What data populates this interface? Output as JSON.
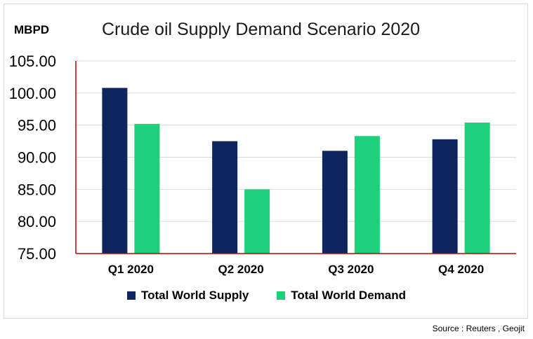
{
  "chart_data": {
    "type": "bar",
    "title": "Crude oil Supply Demand Scenario 2020",
    "ylabel": "MBPD",
    "xlabel": "",
    "categories": [
      "Q1 2020",
      "Q2 2020",
      "Q3 2020",
      "Q4 2020"
    ],
    "series": [
      {
        "name": "Total World Supply",
        "values": [
          100.8,
          92.5,
          91.0,
          92.8
        ],
        "color": "#0f2560"
      },
      {
        "name": "Total World Demand",
        "values": [
          95.2,
          85.0,
          93.3,
          95.4
        ],
        "color": "#1fd07a"
      }
    ],
    "ylim": [
      75,
      105
    ],
    "yticks": [
      "75.00",
      "80.00",
      "85.00",
      "90.00",
      "95.00",
      "100.00",
      "105.00"
    ],
    "grid": true,
    "legend_position": "bottom"
  },
  "source_text": "Source : Reuters , Geojit"
}
